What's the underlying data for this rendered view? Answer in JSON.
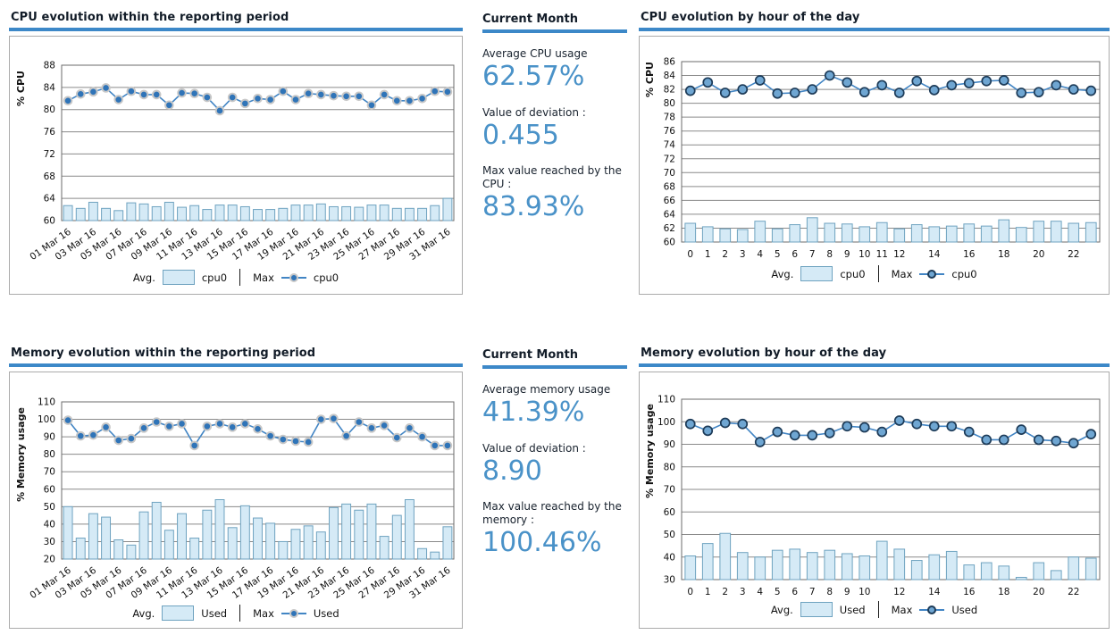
{
  "colors": {
    "accent_blue": "#3c88c8",
    "title_text": "#121c28",
    "stat_value_blue": "#4a92c8",
    "bar_fill": "#d5eaf6",
    "bar_stroke": "#6fa3c0",
    "line_color": "#4285c4",
    "marker_solid_fill": "#2f74b8",
    "marker_solid_ring": "#c7c7c7",
    "marker_ring_fill": "#6fa6d2",
    "marker_ring_stroke": "#1d3b58",
    "grid_line": "#8a8a8a",
    "axis_line": "#6b6b6b",
    "panel_border": "#ababab"
  },
  "chart_data": [
    {
      "id": "cpu-reporting-period",
      "type": "bar+line",
      "title": "CPU evolution within the reporting period",
      "ylabel": "% CPU",
      "ylim": [
        60,
        88
      ],
      "ytick_step": 4,
      "grid": true,
      "legend_position": "bottom",
      "x_count": 31,
      "x_tick_indices": [
        0,
        2,
        4,
        6,
        8,
        10,
        12,
        14,
        16,
        18,
        20,
        22,
        24,
        26,
        28,
        30
      ],
      "x_tick_labels": [
        "01 Mar 16",
        "03 Mar 16",
        "05 Mar 16",
        "07 Mar 16",
        "09 Mar 16",
        "11 Mar 16",
        "13 Mar 16",
        "15 Mar 16",
        "17 Mar 16",
        "19 Mar 16",
        "21 Mar 16",
        "23 Mar 16",
        "25 Mar 16",
        "27 Mar 16",
        "29 Mar 16",
        "31 Mar 16"
      ],
      "legend": {
        "avg_label": "Avg.",
        "avg_series": "cpu0",
        "max_label": "Max",
        "max_series": "cpu0"
      },
      "series": [
        {
          "name": "cpu0",
          "role": "avg",
          "type": "bar",
          "values": [
            62.7,
            62.2,
            63.3,
            62.2,
            61.8,
            63.2,
            63.0,
            62.5,
            63.3,
            62.4,
            62.7,
            62.0,
            62.8,
            62.8,
            62.5,
            62.0,
            62.0,
            62.2,
            62.8,
            62.8,
            63.0,
            62.5,
            62.5,
            62.4,
            62.8,
            62.8,
            62.2,
            62.2,
            62.2,
            62.7,
            64.0
          ]
        },
        {
          "name": "cpu0",
          "role": "max",
          "type": "line",
          "values": [
            81.6,
            82.8,
            83.2,
            83.9,
            81.8,
            83.3,
            82.7,
            82.7,
            80.8,
            83.0,
            82.9,
            82.2,
            79.8,
            82.2,
            81.1,
            82.0,
            81.8,
            83.3,
            81.8,
            82.9,
            82.7,
            82.5,
            82.4,
            82.4,
            80.8,
            82.7,
            81.6,
            81.6,
            82.0,
            83.3,
            83.2
          ]
        }
      ]
    },
    {
      "id": "cpu-by-hour",
      "type": "bar+line",
      "title": "CPU evolution by hour of the day",
      "ylabel": "% CPU",
      "ylim": [
        60,
        86
      ],
      "ytick_step": 2,
      "grid": true,
      "legend_position": "bottom",
      "x_count": 24,
      "x_tick_indices": [
        0,
        1,
        2,
        3,
        4,
        5,
        6,
        7,
        8,
        9,
        10,
        11,
        12,
        14,
        16,
        18,
        20,
        22
      ],
      "x_tick_labels": [
        "0",
        "1",
        "2",
        "3",
        "4",
        "5",
        "6",
        "7",
        "8",
        "9",
        "10",
        "11",
        "12",
        "14",
        "16",
        "18",
        "20",
        "22"
      ],
      "legend": {
        "avg_label": "Avg.",
        "avg_series": "cpu0",
        "max_label": "Max",
        "max_series": "cpu0"
      },
      "series": [
        {
          "name": "cpu0",
          "role": "avg",
          "type": "bar",
          "values": [
            62.7,
            62.2,
            61.9,
            61.8,
            63.0,
            61.9,
            62.5,
            63.5,
            62.7,
            62.6,
            62.2,
            62.8,
            61.9,
            62.5,
            62.2,
            62.3,
            62.6,
            62.3,
            63.2,
            62.1,
            63.0,
            63.0,
            62.7,
            62.8
          ]
        },
        {
          "name": "cpu0",
          "role": "max",
          "type": "line",
          "values": [
            81.8,
            83.0,
            81.5,
            82.0,
            83.3,
            81.4,
            81.5,
            82.0,
            84.0,
            83.0,
            81.6,
            82.6,
            81.5,
            83.2,
            81.9,
            82.6,
            82.9,
            83.2,
            83.3,
            81.5,
            81.6,
            82.6,
            82.0,
            81.8
          ]
        }
      ]
    },
    {
      "id": "memory-reporting-period",
      "type": "bar+line",
      "title": "Memory evolution within the reporting period",
      "ylabel": "% Memory usage",
      "ylim": [
        20,
        110
      ],
      "ytick_step": 10,
      "grid": true,
      "legend_position": "bottom",
      "x_count": 31,
      "x_tick_indices": [
        0,
        2,
        4,
        6,
        8,
        10,
        12,
        14,
        16,
        18,
        20,
        22,
        24,
        26,
        28,
        30
      ],
      "x_tick_labels": [
        "01 Mar 16",
        "03 Mar 16",
        "05 Mar 16",
        "07 Mar 16",
        "09 Mar 16",
        "11 Mar 16",
        "13 Mar 16",
        "15 Mar 16",
        "17 Mar 16",
        "19 Mar 16",
        "21 Mar 16",
        "23 Mar 16",
        "25 Mar 16",
        "27 Mar 16",
        "29 Mar 16",
        "31 Mar 16"
      ],
      "legend": {
        "avg_label": "Avg.",
        "avg_series": "Used",
        "max_label": "Max",
        "max_series": "Used"
      },
      "series": [
        {
          "name": "Used",
          "role": "avg",
          "type": "bar",
          "values": [
            50,
            32,
            46,
            44,
            31,
            28,
            47,
            52.5,
            36.5,
            46,
            32,
            48,
            54,
            38,
            50.5,
            43.5,
            40.5,
            30,
            37,
            39,
            35.5,
            49.5,
            51.5,
            48,
            51.5,
            33,
            45,
            54,
            26,
            24,
            38.5
          ]
        },
        {
          "name": "Used",
          "role": "max",
          "type": "line",
          "values": [
            99.5,
            90.5,
            91,
            95.5,
            88,
            89,
            95,
            98.5,
            96,
            97.5,
            85,
            96,
            97.5,
            95.5,
            97.5,
            94.5,
            90.5,
            88.5,
            87.5,
            87,
            100,
            100.46,
            90.5,
            98.5,
            95,
            96.5,
            89.5,
            95,
            90,
            85,
            85
          ]
        }
      ]
    },
    {
      "id": "memory-by-hour",
      "type": "bar+line",
      "title": "Memory evolution by hour of the day",
      "ylabel": "% Memory usage",
      "ylim": [
        30,
        110
      ],
      "ytick_step": 10,
      "grid": true,
      "legend_position": "bottom",
      "x_count": 24,
      "x_tick_indices": [
        0,
        1,
        2,
        3,
        4,
        5,
        6,
        7,
        8,
        9,
        10,
        12,
        14,
        16,
        18,
        20,
        22
      ],
      "x_tick_labels": [
        "0",
        "1",
        "2",
        "3",
        "4",
        "5",
        "6",
        "7",
        "8",
        "9",
        "10",
        "12",
        "14",
        "16",
        "18",
        "20",
        "22"
      ],
      "legend": {
        "avg_label": "Avg.",
        "avg_series": "Used",
        "max_label": "Max",
        "max_series": "Used"
      },
      "series": [
        {
          "name": "Used",
          "role": "avg",
          "type": "bar",
          "values": [
            40.5,
            46,
            50.5,
            42,
            40,
            43,
            43.5,
            42,
            43,
            41.5,
            40.5,
            47,
            43.5,
            38.5,
            41,
            42.5,
            36.5,
            37.5,
            36,
            31,
            37.5,
            34,
            40,
            39.5
          ]
        },
        {
          "name": "Used",
          "role": "max",
          "type": "line",
          "values": [
            99,
            96,
            99.5,
            99,
            91,
            95.5,
            94,
            94,
            95,
            98,
            97.5,
            95.5,
            100.5,
            99,
            98,
            98,
            95.5,
            92,
            92,
            96.5,
            92,
            91.5,
            90.5,
            94.5
          ]
        }
      ]
    }
  ],
  "stats_panels": [
    {
      "title": "Current Month",
      "items": [
        {
          "label": "Average CPU usage",
          "value": "62.57%"
        },
        {
          "label": "Value of deviation :",
          "value": "0.455"
        },
        {
          "label": "Max value reached by the CPU :",
          "value": "83.93%"
        }
      ]
    },
    {
      "title": "Current Month",
      "items": [
        {
          "label": "Average memory usage",
          "value": "41.39%"
        },
        {
          "label": "Value of deviation :",
          "value": "8.90"
        },
        {
          "label": "Max value reached by the memory :",
          "value": "100.46%"
        }
      ]
    }
  ]
}
